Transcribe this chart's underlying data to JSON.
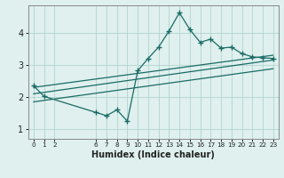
{
  "title": "",
  "xlabel": "Humidex (Indice chaleur)",
  "bg_color": "#dff0ee",
  "grid_color": "#b8d8d4",
  "line_color": "#1a6b65",
  "spine_color": "#888888",
  "xlim": [
    -0.5,
    23.5
  ],
  "ylim": [
    0.7,
    4.85
  ],
  "yticks": [
    1,
    2,
    3,
    4
  ],
  "xtick_positions": [
    0,
    1,
    2,
    6,
    7,
    8,
    9,
    10,
    11,
    12,
    13,
    14,
    15,
    16,
    17,
    18,
    19,
    20,
    21,
    22,
    23
  ],
  "xtick_labels": [
    "0",
    "1",
    "2",
    "6",
    "7",
    "8",
    "9",
    "10",
    "11",
    "12",
    "13",
    "14",
    "15",
    "16",
    "17",
    "18",
    "19",
    "20",
    "21",
    "22",
    "23"
  ],
  "main_line_x": [
    0,
    1,
    6,
    7,
    8,
    9,
    10,
    11,
    12,
    13,
    14,
    15,
    16,
    17,
    18,
    19,
    20,
    21,
    22,
    23
  ],
  "main_line_y": [
    2.35,
    2.02,
    1.52,
    1.42,
    1.6,
    1.25,
    2.82,
    3.2,
    3.55,
    4.05,
    4.62,
    4.1,
    3.7,
    3.8,
    3.52,
    3.55,
    3.35,
    3.25,
    3.22,
    3.2
  ],
  "line1_x": [
    0,
    23
  ],
  "line1_y": [
    2.3,
    3.3
  ],
  "line2_x": [
    0,
    23
  ],
  "line2_y": [
    2.1,
    3.15
  ],
  "line3_x": [
    0,
    23
  ],
  "line3_y": [
    1.85,
    2.88
  ]
}
